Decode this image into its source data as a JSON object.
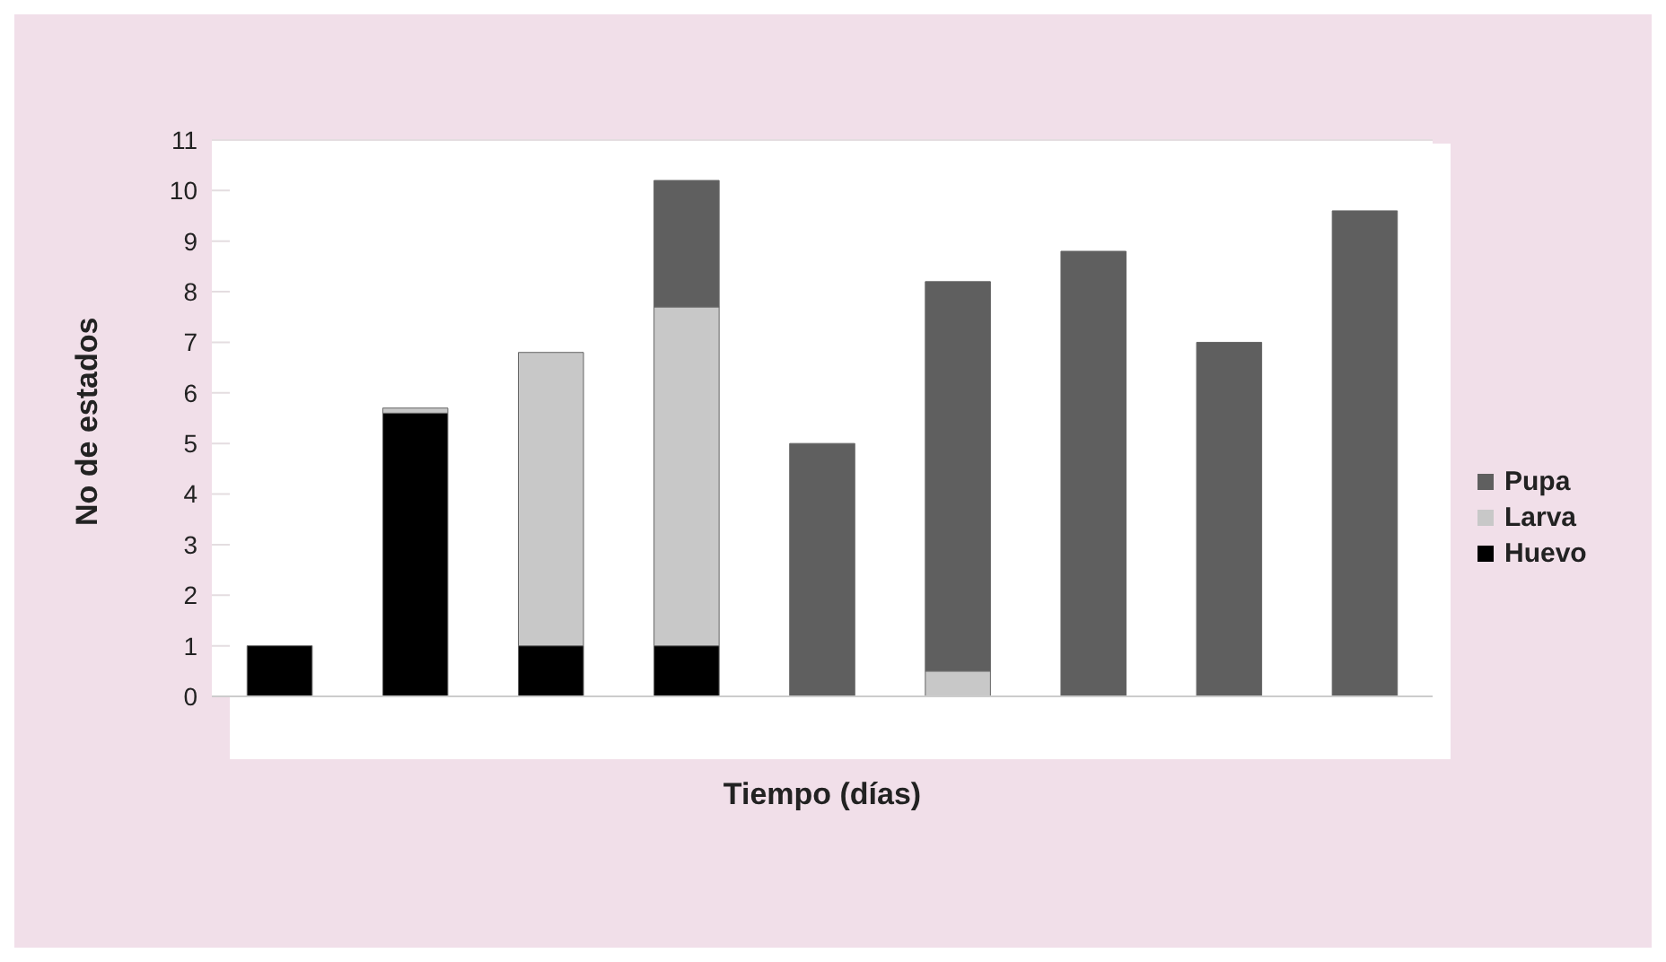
{
  "chart_data": {
    "type": "bar",
    "stacked": true,
    "xlabel": "Tiempo (días)",
    "ylabel": "No de estados",
    "categories": [
      null,
      null,
      null,
      null,
      null,
      null,
      null,
      null,
      null
    ],
    "series": [
      {
        "name": "Huevo",
        "color": "#000000",
        "values": [
          1,
          5.6,
          1,
          1,
          null,
          null,
          null,
          null,
          null
        ]
      },
      {
        "name": "Larva",
        "color": "#c8c8c8",
        "values": [
          null,
          0.1,
          5.8,
          6.7,
          null,
          0.5,
          null,
          null,
          null
        ]
      },
      {
        "name": "Pupa",
        "color": "#5f5f5f",
        "values": [
          null,
          null,
          null,
          2.5,
          5,
          7.7,
          8.8,
          7,
          9.6
        ]
      }
    ],
    "ylim": [
      0,
      11
    ],
    "yticks": [
      0,
      1,
      2,
      3,
      4,
      5,
      6,
      7,
      8,
      9,
      10,
      11
    ],
    "grid": "y",
    "legend": "right"
  }
}
